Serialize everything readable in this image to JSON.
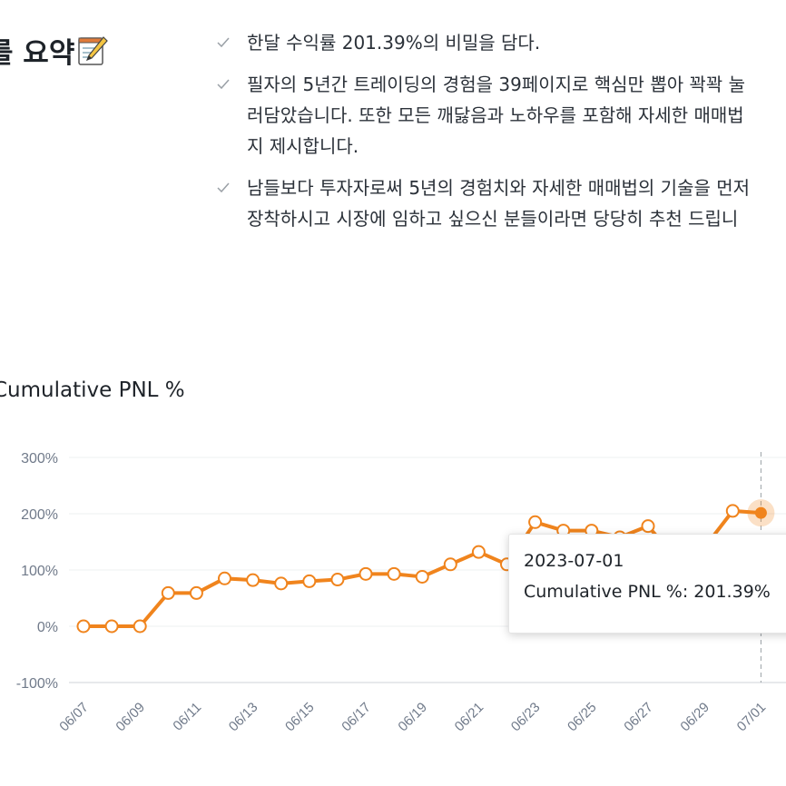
{
  "summary": {
    "heading": "를 요약",
    "heading_icon": "memo-icon",
    "bullet_icon": "check-icon",
    "bullets": [
      [
        "한달 수익률 201.39%의 비밀을 담다."
      ],
      [
        "필자의 5년간 트레이딩의 경험을 39페이지로 핵심만 뽑아 꽉꽉 눌",
        "러담았습니다. 또한 모든 깨닳음과 노하우를 포함해 자세한 매매법",
        "지 제시합니다."
      ],
      [
        "남들보다 투자자로써 5년의 경험치와 자세한 매매법의 기술을 먼저",
        "장착하시고 시장에 임하고 싶으신 분들이라면 당당히 추천 드립니"
      ]
    ]
  },
  "chart_data": {
    "type": "line",
    "title": "Cumulative PNL %",
    "y_unit": "%",
    "ylim": [
      -100,
      300
    ],
    "yticks": [
      -100,
      0,
      100,
      200,
      300
    ],
    "ytick_labels": [
      "-100%",
      "0%",
      "100%",
      "200%",
      "300%"
    ],
    "x_tick_labels": [
      "06/07",
      "06/09",
      "06/11",
      "06/13",
      "06/15",
      "06/17",
      "06/19",
      "06/21",
      "06/23",
      "06/25",
      "06/27",
      "06/29",
      "07/01"
    ],
    "grid": true,
    "color": "#f0841d",
    "x": [
      "06/07",
      "06/08",
      "06/09",
      "06/10",
      "06/11",
      "06/12",
      "06/13",
      "06/14",
      "06/15",
      "06/16",
      "06/17",
      "06/18",
      "06/19",
      "06/20",
      "06/21",
      "06/22",
      "06/23",
      "06/24",
      "06/25",
      "06/26",
      "06/27",
      "06/28",
      "06/29",
      "06/30",
      "07/01"
    ],
    "values": [
      0,
      0,
      0,
      59,
      59,
      85,
      82,
      76,
      80,
      83,
      93,
      93,
      88,
      110,
      132,
      110,
      185,
      170,
      170,
      158,
      178,
      120,
      140,
      205,
      201.39
    ],
    "highlight_index": 24
  },
  "tooltip": {
    "date": "2023-07-01",
    "series_label": "Cumulative PNL %",
    "value": "201.39%"
  }
}
